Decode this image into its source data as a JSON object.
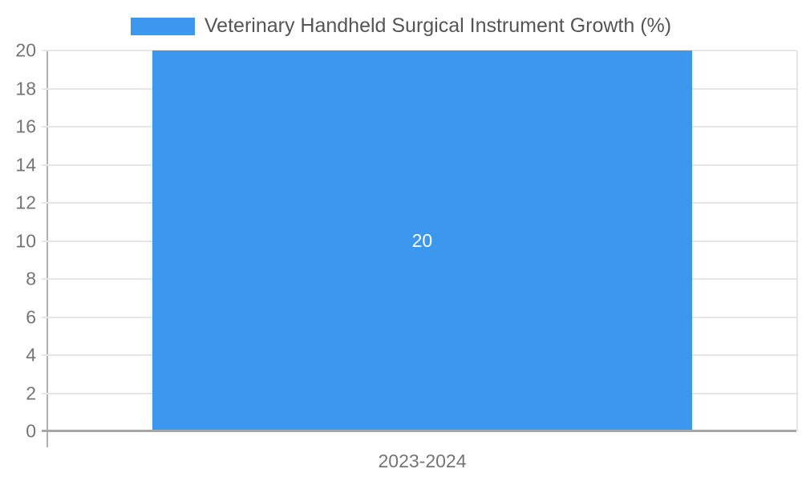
{
  "chart_data": {
    "type": "bar",
    "title": "Veterinary Handheld Surgical Instrument Growth (%)",
    "categories": [
      "2023-2024"
    ],
    "values": [
      20
    ],
    "bar_label": "20",
    "xlabel": "",
    "ylabel": "",
    "ylim": [
      0,
      20
    ],
    "yticks": [
      0,
      2,
      4,
      6,
      8,
      10,
      12,
      14,
      16,
      18,
      20
    ],
    "grid": "horizontal",
    "legend_position": "top",
    "legend_entries": [
      "Veterinary Handheld Surgical Instrument Growth (%)"
    ],
    "colors": {
      "bar": "#3b98ee",
      "grid": "#e6e6e6",
      "axis": "#b0b0b0",
      "baseline": "#a6a6a6",
      "tick_text": "#757575",
      "legend_text": "#555558",
      "bar_label_text": "#ffffff",
      "background": "#ffffff"
    }
  }
}
